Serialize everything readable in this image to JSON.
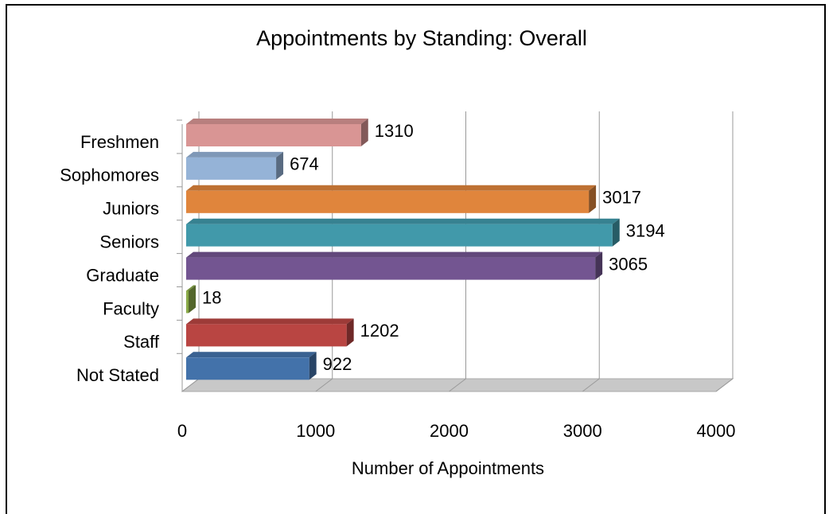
{
  "chart_data": {
    "type": "bar3d_horizontal",
    "title": "Appointments by Standing: Overall",
    "x_label": "Number of Appointments",
    "categories": [
      "Freshmen",
      "Sophomores",
      "Juniors",
      "Seniors",
      "Graduate",
      "Faculty",
      "Staff",
      "Not Stated"
    ],
    "values": [
      1310,
      674,
      3017,
      3194,
      3065,
      18,
      1202,
      922
    ],
    "colors": [
      "#d99594",
      "#95b3d7",
      "#e0853c",
      "#4199aa",
      "#735591",
      "#8aaa48",
      "#b94542",
      "#4372aa"
    ],
    "xlim": [
      0,
      4000
    ],
    "xticks": [
      0,
      1000,
      2000,
      3000,
      4000
    ],
    "grid": true
  }
}
